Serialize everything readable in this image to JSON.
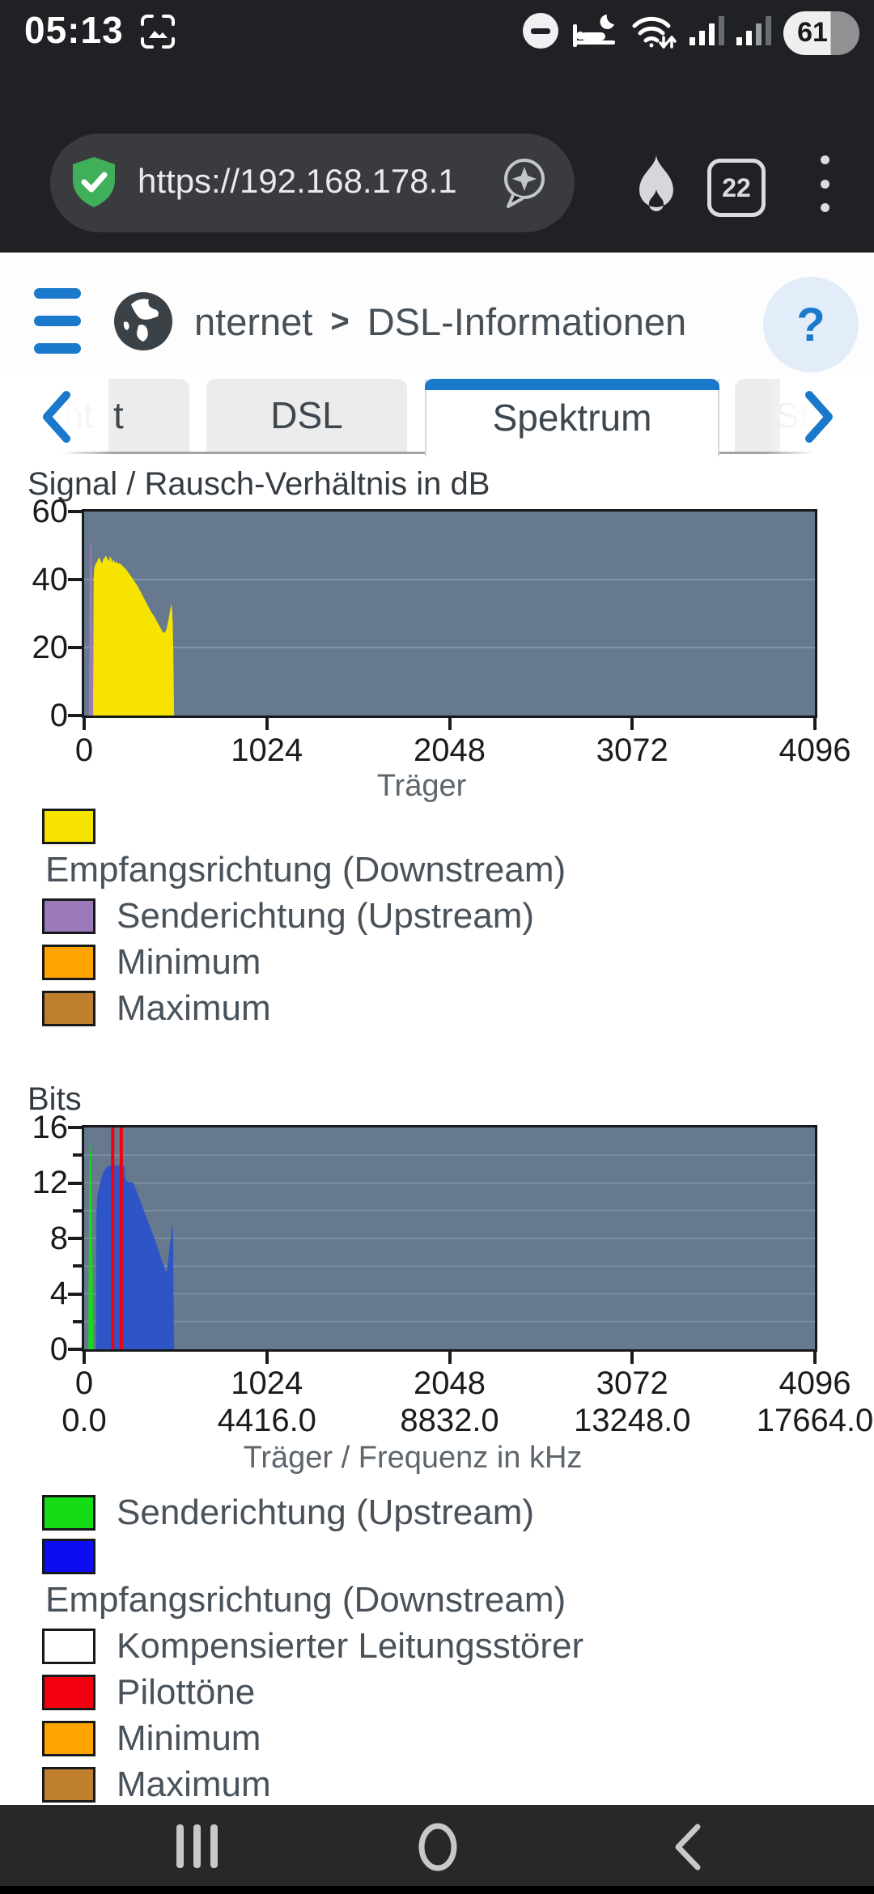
{
  "status_bar": {
    "time": "05:13",
    "battery_percent": "61",
    "icons": [
      "screen-capture",
      "do-not-disturb",
      "bedtime-mode",
      "wifi-arrows",
      "signal-bars-sim1",
      "signal-bars-sim2",
      "battery"
    ]
  },
  "browser": {
    "url": "https://192.168.178.1",
    "tab_count": "22",
    "icons": [
      "site-security-shield",
      "sparkle-bubble",
      "flame",
      "tab-counter",
      "overflow-menu"
    ]
  },
  "page_header": {
    "breadcrumb_section": "nternet",
    "separator": ">",
    "breadcrumb_page": "DSL-Informationen",
    "help_label": "?",
    "icons": [
      "hamburger-menu",
      "globe",
      "help-circle"
    ]
  },
  "tab_bar": {
    "ghost_left": "rsicht",
    "partial_left": "t",
    "tab_dsl": "DSL",
    "tab_active": "Spektrum",
    "ghost_right": "Stat"
  },
  "chart_data": [
    {
      "type": "area",
      "title": "Signal / Rausch-Verhältnis in dB",
      "xlabel": "Träger",
      "xlim": [
        0,
        4096
      ],
      "ylim": [
        0,
        60
      ],
      "xticks": [
        0,
        1024,
        2048,
        3072,
        4096
      ],
      "yticks": [
        0,
        20,
        40,
        60
      ],
      "yticks_minor": [],
      "gridlines_y": [
        20,
        40
      ],
      "plot_bg": "#66798e",
      "grid_color": "#8295a8",
      "series": [
        {
          "name": "Senderichtung (Upstream)",
          "color": "#9c79b8",
          "points": [
            [
              26,
              0
            ],
            [
              30,
              38
            ],
            [
              34,
              50
            ],
            [
              37,
              51.6
            ],
            [
              41,
              50
            ],
            [
              46,
              35
            ],
            [
              50,
              12
            ],
            [
              52,
              0
            ]
          ]
        },
        {
          "name": "Empfangsrichtung (Downstream)",
          "color": "#f6e400",
          "points": [
            [
              50,
              0
            ],
            [
              53,
              40
            ],
            [
              57,
              43.5
            ],
            [
              63,
              44.5
            ],
            [
              70,
              45
            ],
            [
              78,
              46
            ],
            [
              85,
              46.5
            ],
            [
              92,
              45.5
            ],
            [
              100,
              44.8
            ],
            [
              108,
              46
            ],
            [
              115,
              46.5
            ],
            [
              122,
              47
            ],
            [
              130,
              46.2
            ],
            [
              138,
              45.4
            ],
            [
              145,
              46.8
            ],
            [
              152,
              46.2
            ],
            [
              158,
              45
            ],
            [
              165,
              46
            ],
            [
              172,
              44.8
            ],
            [
              180,
              45.4
            ],
            [
              188,
              44.6
            ],
            [
              200,
              44.8
            ],
            [
              215,
              44
            ],
            [
              235,
              43
            ],
            [
              255,
              41.5
            ],
            [
              275,
              40
            ],
            [
              300,
              38
            ],
            [
              325,
              35.5
            ],
            [
              350,
              33
            ],
            [
              375,
              30.5
            ],
            [
              395,
              29
            ],
            [
              410,
              27.5
            ],
            [
              425,
              26
            ],
            [
              440,
              24.6
            ],
            [
              452,
              24.3
            ],
            [
              462,
              25.5
            ],
            [
              472,
              28
            ],
            [
              482,
              31
            ],
            [
              488,
              32.8
            ],
            [
              492,
              31.5
            ],
            [
              496,
              28
            ],
            [
              500,
              18
            ],
            [
              504,
              0
            ]
          ]
        }
      ],
      "legend": [
        {
          "label": "Empfangsrichtung (Downstream)",
          "color": "#f6e400",
          "wrap": true
        },
        {
          "label": "Senderichtung (Upstream)",
          "color": "#9c79b8"
        },
        {
          "label": "Minimum",
          "color": "#ffa400"
        },
        {
          "label": "Maximum",
          "color": "#c07f2e"
        }
      ]
    },
    {
      "type": "area",
      "title": "Bits",
      "xlabel": "Träger / Frequenz in kHz",
      "xlim": [
        0,
        4096
      ],
      "ylim": [
        0,
        16
      ],
      "xticks": [
        0,
        1024,
        2048,
        3072,
        4096
      ],
      "xticks_freq": [
        "0.0",
        "4416.0",
        "8832.0",
        "13248.0",
        "17664.0"
      ],
      "yticks": [
        0,
        4,
        8,
        12,
        16
      ],
      "yticks_minor": [
        2,
        6,
        10,
        14
      ],
      "gridlines_y": [
        2,
        4,
        6,
        8,
        10,
        12,
        14
      ],
      "plot_bg": "#66798e",
      "grid_color": "#7b8ea1",
      "series": [
        {
          "name": "Senderichtung (Upstream)",
          "color": "#16dc16",
          "points": [
            [
              24,
              0
            ],
            [
              28,
              11
            ],
            [
              32,
              14.2
            ],
            [
              35,
              15
            ],
            [
              38,
              14
            ],
            [
              43,
              10
            ],
            [
              48,
              5
            ],
            [
              52,
              0
            ]
          ]
        },
        {
          "name": "Empfangsrichtung (Downstream)",
          "color": "#2e55c8",
          "points": [
            [
              66,
              0
            ],
            [
              68,
              9.5
            ],
            [
              72,
              10.8
            ],
            [
              78,
              11.3
            ],
            [
              85,
              11.8
            ],
            [
              95,
              12.3
            ],
            [
              105,
              12.7
            ],
            [
              118,
              13
            ],
            [
              130,
              13.2
            ],
            [
              145,
              13.25
            ],
            [
              225,
              13.25
            ],
            [
              230,
              12.4
            ],
            [
              238,
              12.1
            ],
            [
              275,
              12
            ],
            [
              285,
              11.7
            ],
            [
              300,
              11.2
            ],
            [
              318,
              10.6
            ],
            [
              335,
              10
            ],
            [
              352,
              9.4
            ],
            [
              368,
              8.9
            ],
            [
              382,
              8.4
            ],
            [
              395,
              8
            ],
            [
              405,
              7.6
            ],
            [
              415,
              7.2
            ],
            [
              428,
              6.7
            ],
            [
              438,
              6.3
            ],
            [
              448,
              6
            ],
            [
              455,
              5.7
            ],
            [
              460,
              5.5
            ],
            [
              466,
              5.9
            ],
            [
              473,
              6.6
            ],
            [
              480,
              7.4
            ],
            [
              488,
              8.3
            ],
            [
              494,
              9.1
            ],
            [
              498,
              8.2
            ],
            [
              501,
              4
            ],
            [
              504,
              0
            ]
          ]
        }
      ],
      "pilot_tones": {
        "color": "#f2000d",
        "carriers": [
          160,
          208
        ],
        "width": 18
      },
      "legend": [
        {
          "label": "Senderichtung (Upstream)",
          "color": "#16dc16"
        },
        {
          "label": "Empfangsrichtung (Downstream)",
          "color": "#0d0df0",
          "wrap": true
        },
        {
          "label": "Kompensierter Leitungsstörer",
          "color": "#ffffff"
        },
        {
          "label": "Pilottöne",
          "color": "#f2000d"
        },
        {
          "label": "Minimum",
          "color": "#ffa400"
        },
        {
          "label": "Maximum",
          "color": "#c07f2e"
        }
      ]
    }
  ],
  "colors": {
    "accent_blue": "#1b79cb",
    "plot_bg": "#66798e",
    "chrome_bg": "#202124"
  }
}
